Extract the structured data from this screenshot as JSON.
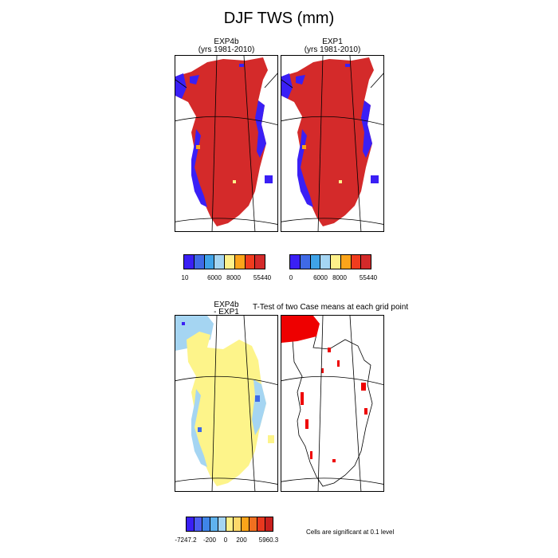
{
  "figure": {
    "title": "DJF TWS (mm)"
  },
  "panels": [
    {
      "id": "exp4b",
      "title_line1": "EXP4b",
      "title_line2": "(yrs 1981-2010)"
    },
    {
      "id": "exp1",
      "title_line1": "EXP1",
      "title_line2": "(yrs 1981-2010)"
    },
    {
      "id": "diff",
      "title_line1": "EXP4b",
      "title_line2": "- EXP1"
    },
    {
      "id": "ttest",
      "title_line1": "T-Test of two Case means at each grid point",
      "title_line2": ""
    }
  ],
  "colorbars": {
    "exp4b": {
      "colors": [
        "#3a1ff5",
        "#3f6ae6",
        "#3fa3e8",
        "#a5d5f2",
        "#fef08a",
        "#fba41a",
        "#f03c1e",
        "#d42a2a"
      ],
      "tick_labels": [
        "10",
        "6000",
        "8000",
        "55440"
      ]
    },
    "exp1": {
      "colors": [
        "#3a1ff5",
        "#3f6ae6",
        "#3fa3e8",
        "#a5d5f2",
        "#fef08a",
        "#fba41a",
        "#f03c1e",
        "#d42a2a"
      ],
      "tick_labels": [
        "0",
        "6000",
        "8000",
        "55440"
      ]
    },
    "diff": {
      "colors": [
        "#3a1ff5",
        "#4c5cf0",
        "#3f85e8",
        "#5fb2ee",
        "#a5d5f2",
        "#fef08a",
        "#fdd86a",
        "#fba41a",
        "#f07020",
        "#e8381e",
        "#c8201e"
      ],
      "tick_labels": [
        "-7247.2",
        "-200",
        "0",
        "200",
        "5960.3"
      ]
    }
  },
  "significance_note": "Cells are significant at 0.1 level",
  "map_colors": {
    "land_high": "#d42a2a",
    "land_low": "#3a1ff5",
    "diff_fill": "#fdf48a",
    "diff_blue": "#a5d5f2",
    "sig": "#ee0000"
  }
}
